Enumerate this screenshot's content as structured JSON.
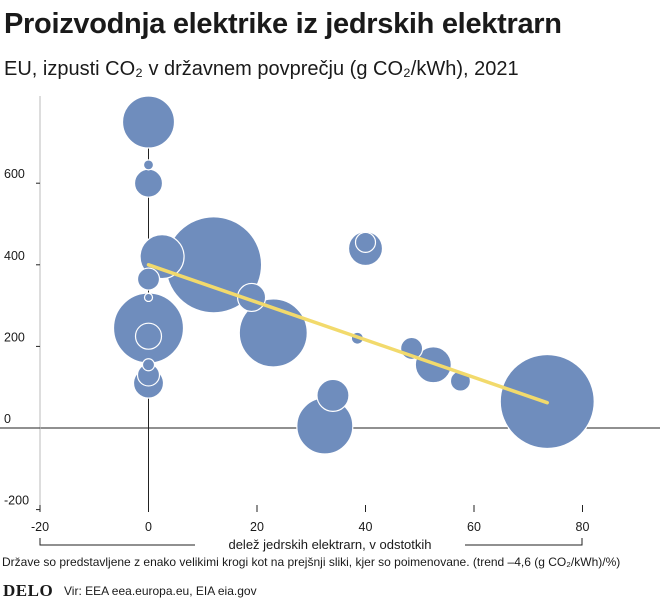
{
  "title": "Proizvodnja elektrike iz jedrskih elektrarn",
  "subtitle": "EU, izpusti CO₂ v državnem povprečju (g CO₂/kWh), 2021",
  "note": "Države so predstavljene z enako velikimi krogi kot na prejšnji sliki, kjer so poimenovane. (trend –4,6 (g CO₂/kWh)/%)",
  "footer": {
    "logo": "DELO",
    "source": "Vir: EEA eea.europa.eu, EIA eia.gov"
  },
  "colors": {
    "bubble": "#6f8dbd",
    "bubble_stroke": "#ffffff",
    "trend": "#f2da6c",
    "axis": "#222222",
    "grid": "#bbbbbb"
  },
  "chart_data": {
    "type": "scatter",
    "title": "Proizvodnja elektrike iz jedrskih elektrarn",
    "subtitle": "EU, izpusti CO₂ v državnem povprečju (g CO₂/kWh), 2021",
    "xlabel": "delež jedrskih elektrarn, v odstotkih",
    "ylabel": "",
    "xlim": [
      -20,
      95
    ],
    "ylim": [
      -210,
      790
    ],
    "x_ticks": [
      {
        "value": -20,
        "label": "-20"
      },
      {
        "value": 0,
        "label": "0"
      },
      {
        "value": 20,
        "label": "20"
      },
      {
        "value": 40,
        "label": "40"
      },
      {
        "value": 60,
        "label": "60"
      },
      {
        "value": 80,
        "label": "80"
      }
    ],
    "y_ticks": [
      {
        "value": -200,
        "label": "-200"
      },
      {
        "value": 0,
        "label": "0"
      },
      {
        "value": 200,
        "label": "200"
      },
      {
        "value": 400,
        "label": "400"
      },
      {
        "value": 600,
        "label": "600"
      }
    ],
    "grid": false,
    "points": [
      {
        "x": 12,
        "y": 400,
        "r": 48
      },
      {
        "x": 73.5,
        "y": 65,
        "r": 47
      },
      {
        "x": 0,
        "y": 245,
        "r": 35
      },
      {
        "x": 23,
        "y": 233,
        "r": 34
      },
      {
        "x": 0,
        "y": 750,
        "r": 26
      },
      {
        "x": 32.5,
        "y": 5,
        "r": 28
      },
      {
        "x": 2.5,
        "y": 420,
        "r": 22
      },
      {
        "x": 40,
        "y": 455,
        "r": 10
      },
      {
        "x": 40,
        "y": 440,
        "r": 17
      },
      {
        "x": 52.5,
        "y": 155,
        "r": 18
      },
      {
        "x": 34,
        "y": 80,
        "r": 16
      },
      {
        "x": 19,
        "y": 320,
        "r": 14
      },
      {
        "x": 0,
        "y": 600,
        "r": 14
      },
      {
        "x": 48.5,
        "y": 195,
        "r": 11
      },
      {
        "x": 57.5,
        "y": 115,
        "r": 10
      },
      {
        "x": 0,
        "y": 365,
        "r": 11
      },
      {
        "x": 0,
        "y": 110,
        "r": 15
      },
      {
        "x": 0,
        "y": 130,
        "r": 11
      },
      {
        "x": 0,
        "y": 225,
        "r": 13
      },
      {
        "x": 0,
        "y": 155,
        "r": 6
      },
      {
        "x": 0,
        "y": 320,
        "r": 4
      },
      {
        "x": 0,
        "y": 645,
        "r": 5
      },
      {
        "x": 38.5,
        "y": 220,
        "r": 6
      }
    ],
    "trend": {
      "x": [
        0,
        73.5
      ],
      "y": [
        400,
        62
      ],
      "slope_label": "–4,6 (g CO₂/kWh)/%"
    }
  }
}
